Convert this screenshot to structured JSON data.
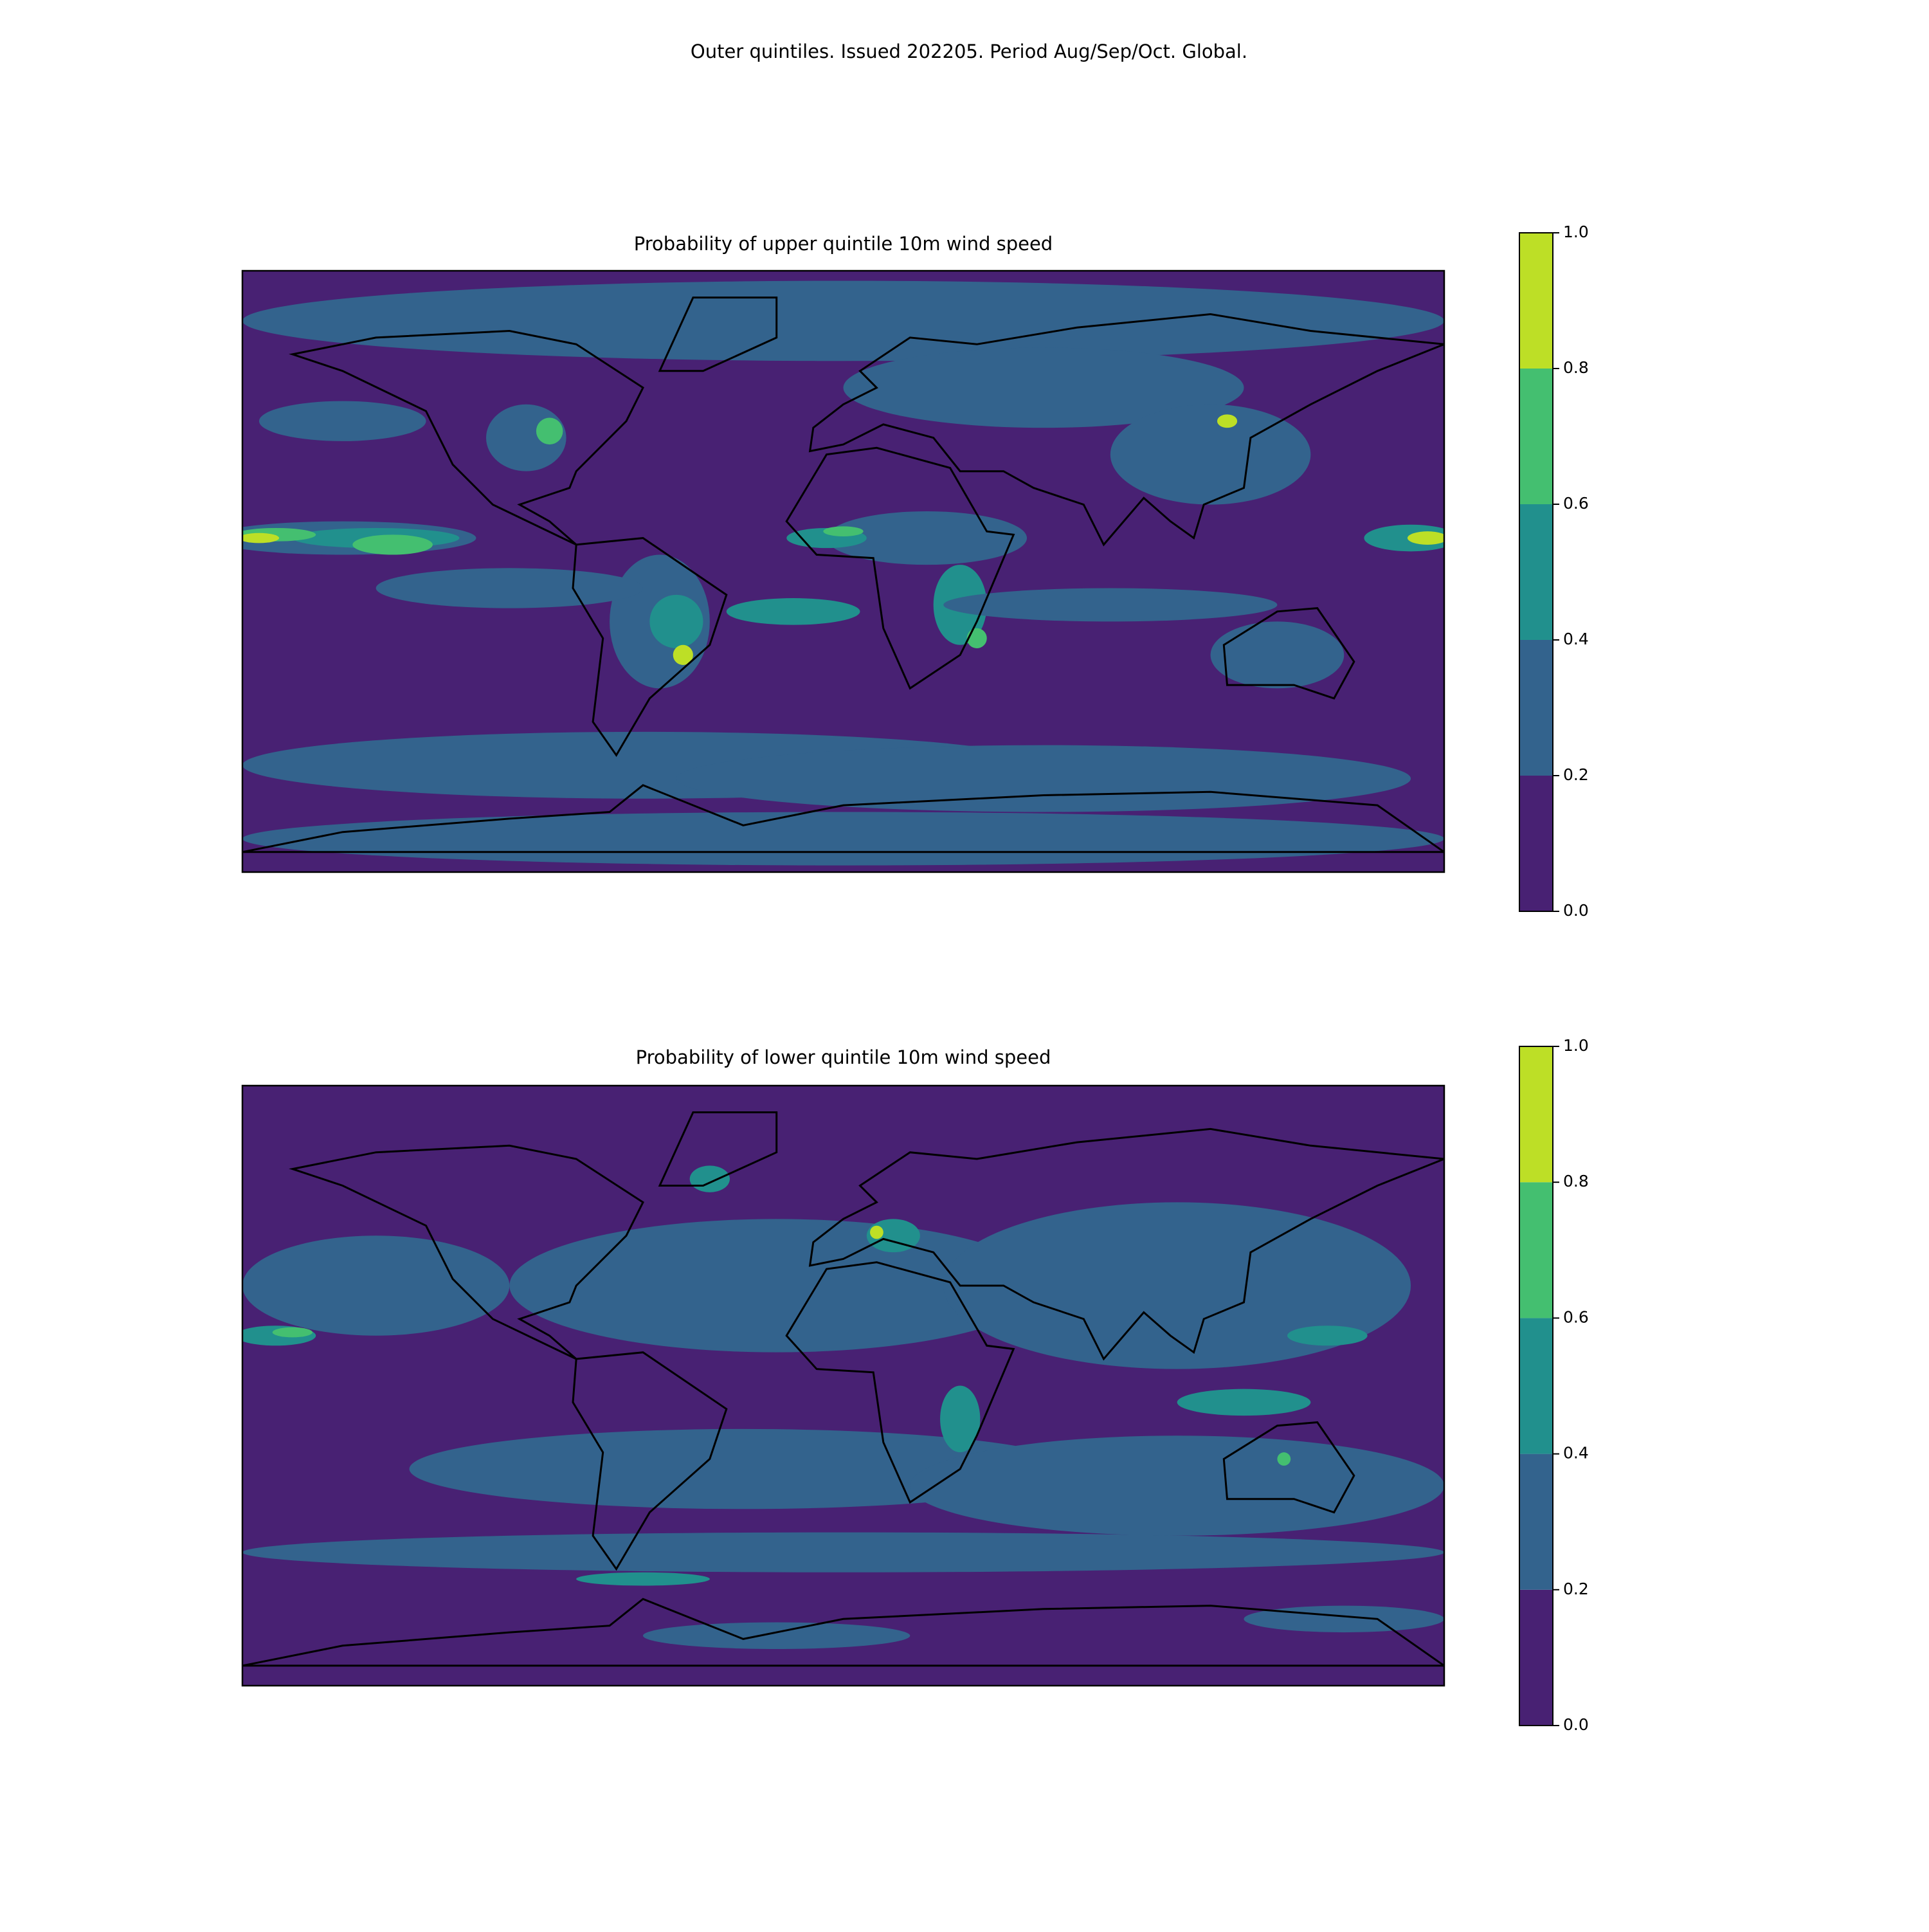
{
  "title": "Outer quintiles. Issued 202205. Period Aug/Sep/Oct. Global.",
  "panels": [
    {
      "title": "Probability of upper quintile 10m wind speed",
      "colorbar": {
        "ticks": [
          {
            "value": 0,
            "label": "0.0"
          },
          0.2,
          0.4,
          0.6,
          0.8,
          {
            "value": 1,
            "label": "1.0"
          }
        ],
        "colors": [
          "#482173",
          "#33638d",
          "#21908d",
          "#44bf70",
          "#bddf26"
        ]
      }
    },
    {
      "title": "Probability of lower quintile 10m wind speed",
      "colorbar": {
        "ticks": [
          {
            "value": 0,
            "label": "0.0"
          },
          0.2,
          0.4,
          0.6,
          0.8,
          {
            "value": 1,
            "label": "1.0"
          }
        ],
        "colors": [
          "#482173",
          "#33638d",
          "#21908d",
          "#44bf70",
          "#bddf26"
        ]
      }
    }
  ]
}
